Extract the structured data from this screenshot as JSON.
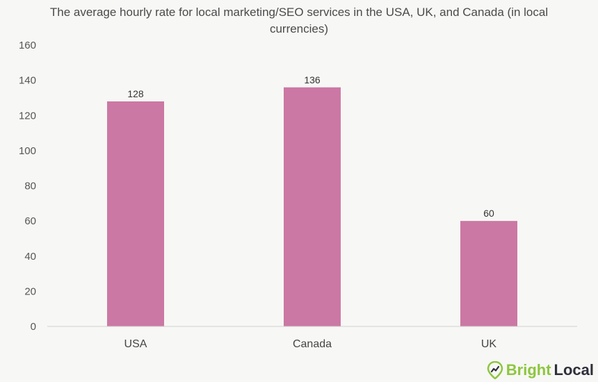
{
  "chart_data": {
    "type": "bar",
    "title": "The average hourly rate for local marketing/SEO services in the USA, UK, and Canada (in local currencies)",
    "categories": [
      "USA",
      "Canada",
      "UK"
    ],
    "values": [
      128,
      136,
      60
    ],
    "data_labels": [
      "128",
      "136",
      "60"
    ],
    "ylim": [
      0,
      160
    ],
    "yticks": [
      0,
      20,
      40,
      60,
      80,
      100,
      120,
      140,
      160
    ],
    "xlabel": "",
    "ylabel": "",
    "bar_color": "#cb78a4",
    "grid": false
  },
  "brand": {
    "part1": "Bright",
    "part2": "Local",
    "icon": "location-pin-icon",
    "color1": "#8dc63f",
    "color2": "#2e2f3a"
  }
}
